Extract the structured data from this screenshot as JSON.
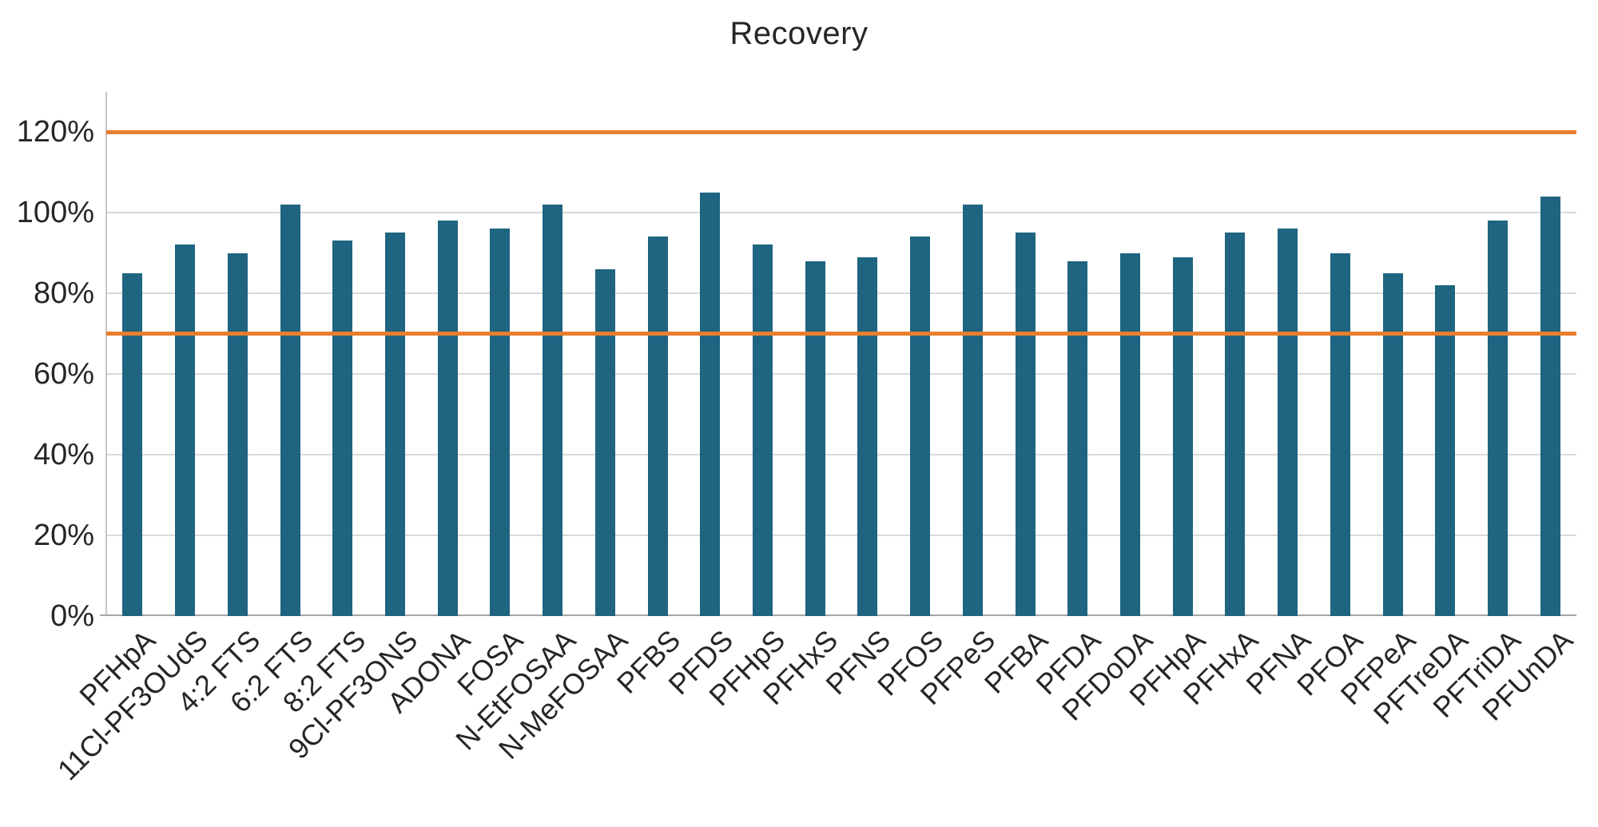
{
  "title": "Recovery",
  "chart_data": {
    "type": "bar",
    "title": "Recovery",
    "xlabel": "",
    "ylabel": "",
    "categories": [
      "PFHpA",
      "11Cl-PF3OUdS",
      "4:2 FTS",
      "6:2 FTS",
      "8:2 FTS",
      "9Cl-PF3ONS",
      "ADONA",
      "FOSA",
      "N-EtFOSAA",
      "N-MeFOSAA",
      "PFBS",
      "PFDS",
      "PFHpS",
      "PFHxS",
      "PFNS",
      "PFOS",
      "PFPeS",
      "PFBA",
      "PFDA",
      "PFDoDA",
      "PFHpA",
      "PFHxA",
      "PFNA",
      "PFOA",
      "PFPeA",
      "PFTreDA",
      "PFTriDA",
      "PFUnDA"
    ],
    "values": [
      85,
      92,
      90,
      102,
      93,
      95,
      98,
      96,
      102,
      86,
      94,
      105,
      92,
      88,
      89,
      94,
      102,
      95,
      88,
      90,
      89,
      95,
      96,
      90,
      85,
      82,
      98,
      104
    ],
    "value_unit": "%",
    "ylim": [
      0,
      130
    ],
    "ytick_labels": [
      "0%",
      "20%",
      "40%",
      "60%",
      "80%",
      "100%",
      "120%"
    ],
    "ytick_values": [
      0,
      20,
      40,
      60,
      80,
      100,
      120
    ],
    "reference_lines": [
      70,
      120
    ],
    "grid": "horizontal",
    "legend": "none",
    "colors": {
      "bar": "#1F6480",
      "reference_line": "#E87E2E",
      "gridline": "#D9D9D9",
      "y_axis_line": "#C6C6C6",
      "x_axis_line": "#A6A6A6",
      "text": "#262626",
      "background": "#FFFFFF"
    }
  }
}
